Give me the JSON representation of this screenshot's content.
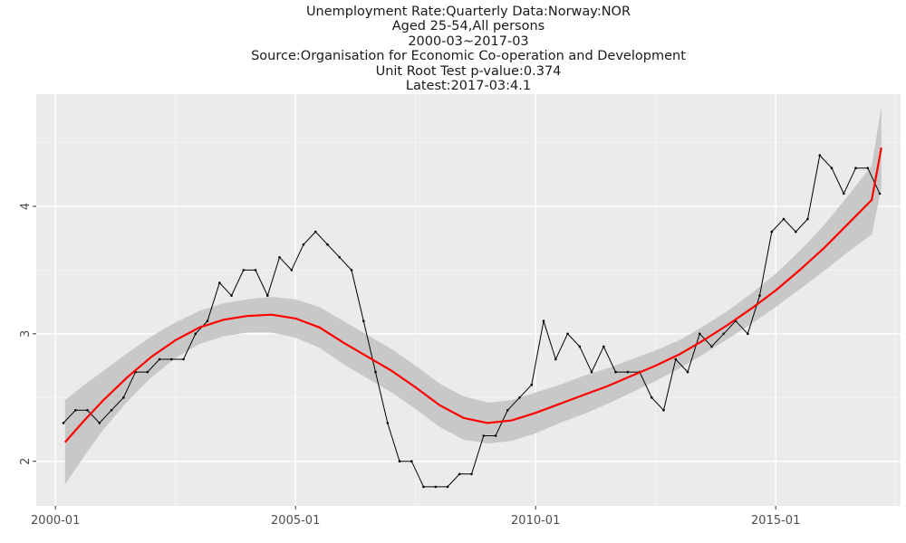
{
  "chart_data": {
    "type": "line",
    "title_lines": [
      "Unemployment Rate:Quarterly Data:Norway:NOR",
      "Aged 25-54,All persons",
      "2000-03~2017-03",
      "Source:Organisation for Economic Co-operation and Development",
      "Unit Root Test p-value:0.374",
      "Latest:2017-03:4.1"
    ],
    "xlabel": "",
    "ylabel": "",
    "x_ticks": [
      {
        "label": "2000-01",
        "value": 2000.0
      },
      {
        "label": "2005-01",
        "value": 2005.0
      },
      {
        "label": "2010-01",
        "value": 2010.0
      },
      {
        "label": "2015-01",
        "value": 2015.0
      }
    ],
    "y_ticks": [
      {
        "label": "2",
        "value": 2
      },
      {
        "label": "3",
        "value": 3
      },
      {
        "label": "4",
        "value": 4
      }
    ],
    "xlim": [
      1999.6,
      2017.6
    ],
    "ylim": [
      1.65,
      4.88
    ],
    "grid": true,
    "colors": {
      "panel": "#ebebeb",
      "grid": "#ffffff",
      "series": "#000000",
      "trend": "#ff0000",
      "band": "#c8c8c8"
    },
    "series": [
      {
        "x": [
          "2000-03",
          "2000-06",
          "2000-09",
          "2000-12",
          "2001-03",
          "2001-06",
          "2001-09",
          "2001-12",
          "2002-03",
          "2002-06",
          "2002-09",
          "2002-12",
          "2003-03",
          "2003-06",
          "2003-09",
          "2003-12",
          "2004-03",
          "2004-06",
          "2004-09",
          "2004-12",
          "2005-03",
          "2005-06",
          "2005-09",
          "2005-12",
          "2006-03",
          "2006-06",
          "2006-09",
          "2006-12",
          "2007-03",
          "2007-06",
          "2007-09",
          "2007-12",
          "2008-03",
          "2008-06",
          "2008-09",
          "2008-12",
          "2009-03",
          "2009-06",
          "2009-09",
          "2009-12",
          "2010-03",
          "2010-06",
          "2010-09",
          "2010-12",
          "2011-03",
          "2011-06",
          "2011-09",
          "2011-12",
          "2012-03",
          "2012-06",
          "2012-09",
          "2012-12",
          "2013-03",
          "2013-06",
          "2013-09",
          "2013-12",
          "2014-03",
          "2014-06",
          "2014-09",
          "2014-12",
          "2015-03",
          "2015-06",
          "2015-09",
          "2015-12",
          "2016-03",
          "2016-06",
          "2016-09",
          "2016-12",
          "2017-03"
        ],
        "values": [
          2.3,
          2.4,
          2.4,
          2.3,
          2.4,
          2.5,
          2.7,
          2.7,
          2.8,
          2.8,
          2.8,
          3.0,
          3.1,
          3.4,
          3.3,
          3.5,
          3.5,
          3.3,
          3.6,
          3.5,
          3.7,
          3.8,
          3.7,
          3.6,
          3.5,
          3.1,
          2.7,
          2.3,
          2.0,
          2.0,
          1.8,
          1.8,
          1.8,
          1.9,
          1.9,
          2.2,
          2.2,
          2.4,
          2.5,
          2.6,
          3.1,
          2.8,
          3.0,
          2.9,
          2.7,
          2.9,
          2.7,
          2.7,
          2.7,
          2.5,
          2.4,
          2.8,
          2.7,
          3.0,
          2.9,
          3.0,
          3.1,
          3.0,
          3.3,
          3.8,
          3.9,
          3.8,
          3.9,
          4.4,
          4.3,
          4.1,
          4.3,
          4.3,
          4.1
        ]
      }
    ],
    "trend": {
      "x": [
        2000.2,
        2000.6,
        2001.0,
        2001.5,
        2002.0,
        2002.5,
        2003.0,
        2003.5,
        2004.0,
        2004.5,
        2005.0,
        2005.5,
        2006.0,
        2006.5,
        2007.0,
        2007.5,
        2008.0,
        2008.5,
        2009.0,
        2009.5,
        2010.0,
        2010.5,
        2011.0,
        2011.5,
        2012.0,
        2012.5,
        2013.0,
        2013.5,
        2014.0,
        2014.5,
        2015.0,
        2015.5,
        2016.0,
        2016.5,
        2017.0,
        2017.2
      ],
      "values": [
        2.15,
        2.32,
        2.48,
        2.66,
        2.82,
        2.95,
        3.05,
        3.11,
        3.14,
        3.15,
        3.12,
        3.05,
        2.93,
        2.82,
        2.71,
        2.58,
        2.44,
        2.34,
        2.3,
        2.32,
        2.38,
        2.45,
        2.52,
        2.59,
        2.67,
        2.75,
        2.84,
        2.95,
        3.07,
        3.2,
        3.34,
        3.5,
        3.67,
        3.86,
        4.05,
        4.46
      ],
      "band": [
        0.33,
        0.28,
        0.23,
        0.19,
        0.16,
        0.14,
        0.13,
        0.13,
        0.13,
        0.14,
        0.15,
        0.16,
        0.17,
        0.17,
        0.17,
        0.17,
        0.17,
        0.17,
        0.16,
        0.16,
        0.16,
        0.15,
        0.15,
        0.14,
        0.13,
        0.12,
        0.11,
        0.11,
        0.11,
        0.12,
        0.13,
        0.15,
        0.18,
        0.22,
        0.27,
        0.32
      ]
    }
  }
}
